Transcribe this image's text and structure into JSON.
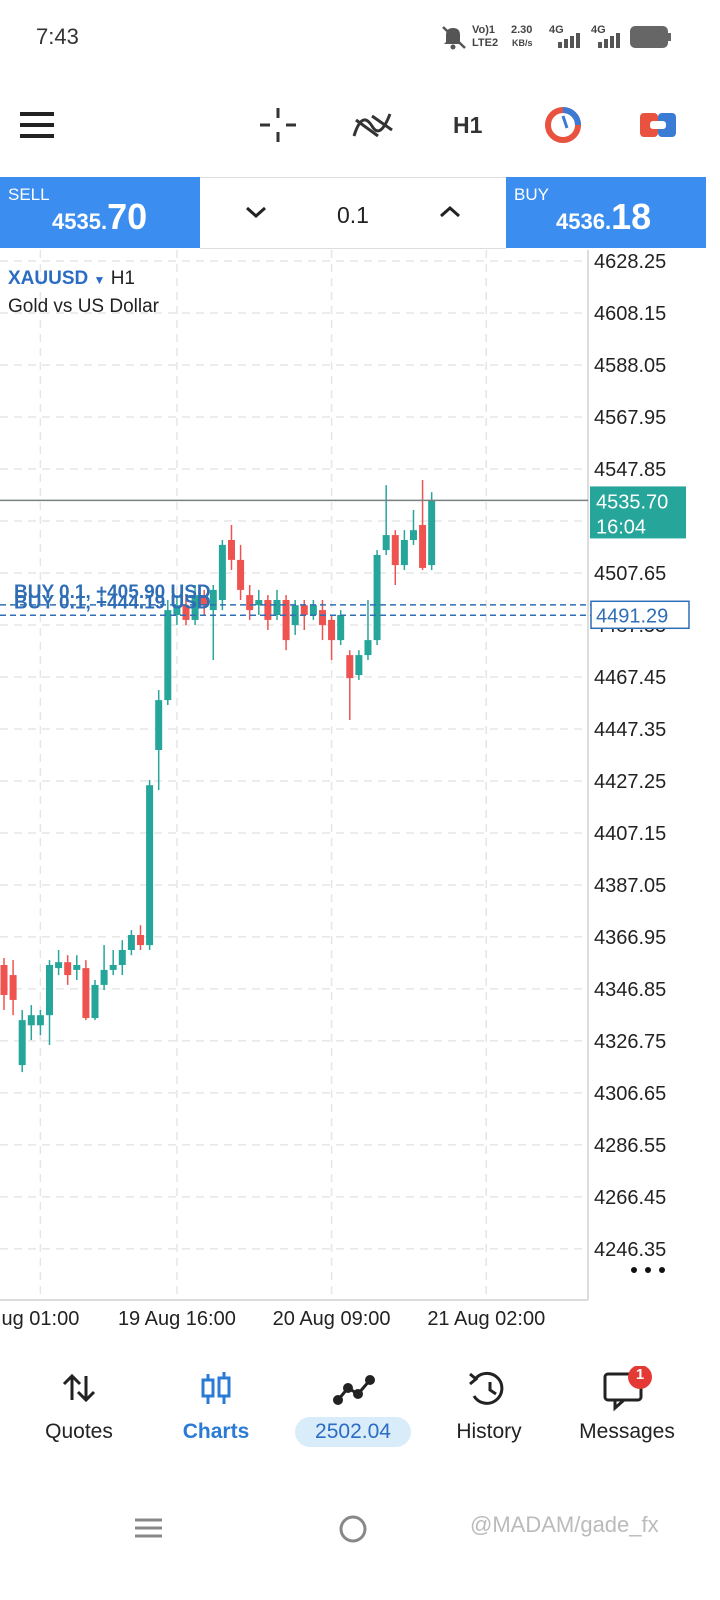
{
  "status_bar": {
    "time": "7:43",
    "volte": "Vo)1",
    "lte": "LTE2",
    "speed": "2.30",
    "speed_unit": "KB/s",
    "net1": "4G",
    "net2": "4G"
  },
  "toolbar": {
    "timeframe": "H1"
  },
  "trade_panel": {
    "sell_label": "SELL",
    "sell_price_main": "4535.",
    "sell_price_big": "70",
    "volume": "0.1",
    "buy_label": "BUY",
    "buy_price_main": "4536.",
    "buy_price_big": "18"
  },
  "chart_data": {
    "type": "candlestick",
    "symbol": "XAUUSD",
    "timeframe": "H1",
    "description": "Gold vs US Dollar",
    "open": [
      4356.1,
      4352.2,
      4317.4,
      4332.8,
      4332.8,
      4336.7,
      4354.9,
      4357.2,
      4354.2,
      4354.9,
      4335.6,
      4348.4,
      4354.2,
      4356.1,
      4361.9,
      4367.7,
      4363.8,
      4439.2,
      4458.5,
      4491.4,
      4495.2,
      4489.5,
      4499.1,
      4493.3,
      4497.2,
      4520.4,
      4512.7,
      4499.1,
      4495.2,
      4497.2,
      4491.4,
      4497.2,
      4487.5,
      4495.2,
      4491.4,
      4493.3,
      4489.5,
      4481.7,
      4475.9,
      4468.2,
      4475.9,
      4481.7,
      4516.5,
      4522.3,
      4510.7,
      4520.4,
      4526.2,
      4510.7
    ],
    "high": [
      4358.8,
      4358.0,
      4338.7,
      4340.6,
      4338.7,
      4358.0,
      4361.9,
      4359.9,
      4359.9,
      4358.0,
      4350.3,
      4363.8,
      4361.9,
      4365.7,
      4369.6,
      4371.5,
      4427.6,
      4462.4,
      4497.2,
      4499.1,
      4499.1,
      4503.0,
      4501.1,
      4503.0,
      4520.4,
      4526.2,
      4518.5,
      4503.0,
      4501.1,
      4499.1,
      4501.1,
      4499.1,
      4497.2,
      4497.2,
      4497.2,
      4497.2,
      4491.4,
      4493.3,
      4477.8,
      4477.8,
      4497.2,
      4516.5,
      4541.6,
      4524.2,
      4524.2,
      4532.0,
      4543.6,
      4538.9
    ],
    "low": [
      4338.7,
      4336.7,
      4314.7,
      4327.1,
      4329.0,
      4325.2,
      4352.2,
      4348.4,
      4350.3,
      4334.8,
      4334.8,
      4346.4,
      4352.2,
      4352.2,
      4359.9,
      4361.9,
      4361.9,
      4423.7,
      4456.6,
      4487.5,
      4487.5,
      4487.5,
      4491.4,
      4474.0,
      4493.3,
      4508.8,
      4497.2,
      4489.5,
      4491.4,
      4485.6,
      4489.5,
      4477.8,
      4483.7,
      4485.6,
      4489.5,
      4481.7,
      4474.0,
      4479.8,
      4450.8,
      4466.3,
      4474.0,
      4479.8,
      4514.6,
      4503.0,
      4508.8,
      4518.5,
      4508.8,
      4508.8
    ],
    "close": [
      4344.5,
      4342.6,
      4334.8,
      4336.7,
      4336.7,
      4356.1,
      4357.2,
      4352.2,
      4356.1,
      4335.6,
      4348.4,
      4354.2,
      4356.1,
      4361.9,
      4367.7,
      4363.8,
      4425.6,
      4458.5,
      4493.3,
      4495.2,
      4489.5,
      4499.1,
      4495.2,
      4501.1,
      4518.5,
      4512.7,
      4501.1,
      4493.3,
      4497.2,
      4489.5,
      4497.2,
      4481.7,
      4495.2,
      4491.4,
      4495.2,
      4487.5,
      4481.7,
      4491.4,
      4467.0,
      4475.9,
      4481.7,
      4514.6,
      4522.3,
      4510.7,
      4520.4,
      4524.2,
      4509.6,
      4535.7
    ],
    "up_color": "#26a69a",
    "down_color": "#ef5350",
    "xlim": [
      -0.44,
      64.18
    ],
    "xticks": [
      {
        "value": 4,
        "label": "ug 01:00"
      },
      {
        "value": 19,
        "label": "19 Aug 16:00"
      },
      {
        "value": 36,
        "label": "20 Aug 09:00"
      },
      {
        "value": 53,
        "label": "21 Aug 02:00"
      }
    ],
    "ylim": [
      4226.6,
      4632.5
    ],
    "yticks": [
      4628.25,
      4608.15,
      4588.05,
      4567.95,
      4547.85,
      4527.75,
      4507.65,
      4487.55,
      4467.45,
      4447.35,
      4427.25,
      4407.15,
      4387.05,
      4366.95,
      4346.85,
      4326.75,
      4306.65,
      4286.55,
      4266.45,
      4246.35
    ],
    "grid": true,
    "last_price": {
      "value": 4535.7,
      "label": "4535.70",
      "time": "16:04"
    },
    "positions": [
      {
        "label": "BUY 0.1, +405.90 USD",
        "price": 4495.3
      },
      {
        "label": "BUY 0.1, +444.19 USD",
        "price": 4491.29,
        "price_label": "4491.29"
      }
    ]
  },
  "bottom_nav": {
    "items": [
      {
        "label": "Quotes"
      },
      {
        "label": "Charts"
      },
      {
        "label": "2502.04"
      },
      {
        "label": "History"
      },
      {
        "label": "Messages",
        "badge": "1"
      }
    ]
  },
  "watermark": "@MADAM/gade_fx"
}
